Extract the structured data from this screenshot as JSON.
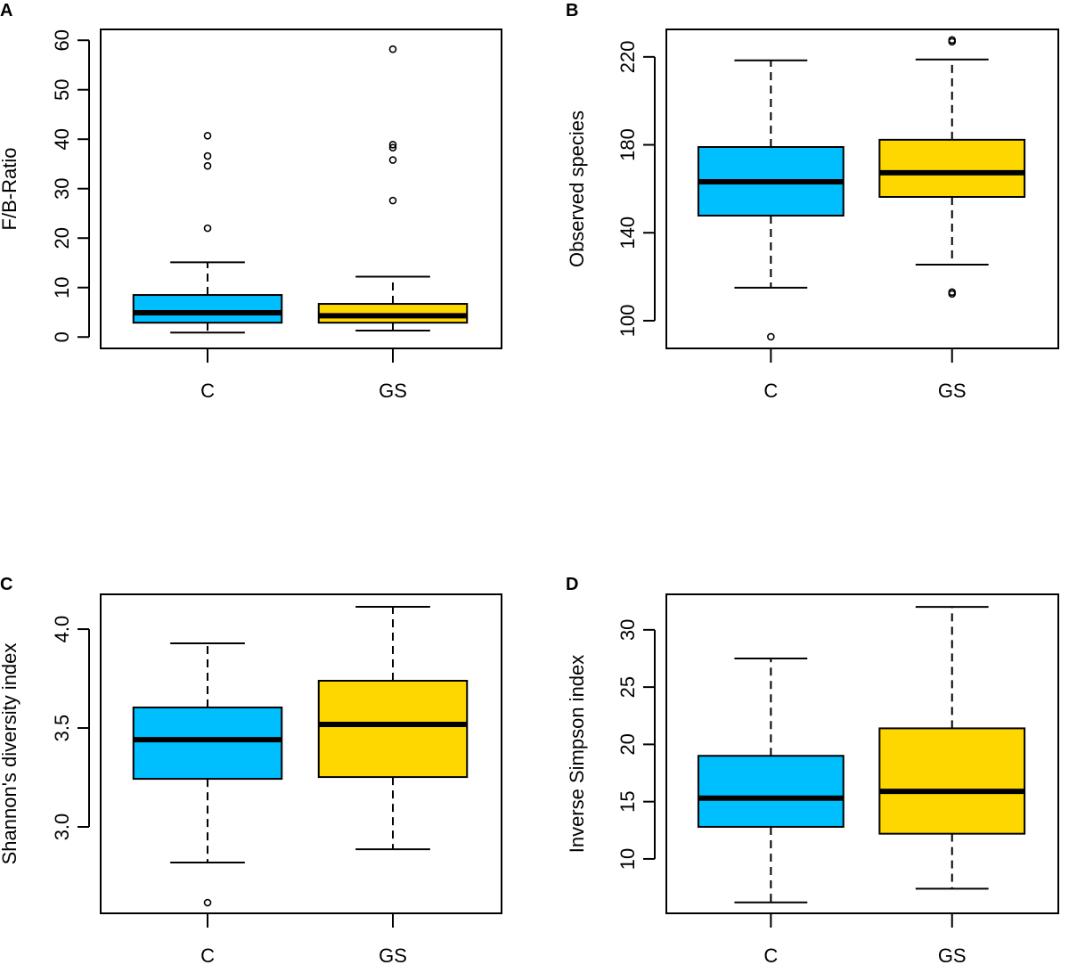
{
  "chart_data": [
    {
      "panel": "A",
      "type": "boxplot",
      "xlabel": "",
      "ylabel": "F/B-Ratio",
      "categories": [
        "C",
        "GS"
      ],
      "colors": [
        "#00BFFF",
        "#FFD700"
      ],
      "ylim": [
        -2.3,
        62.2
      ],
      "yticks": [
        0,
        10,
        20,
        30,
        40,
        50,
        60
      ],
      "grid": false,
      "boxes": [
        {
          "min": 0.9,
          "q1": 2.9,
          "median": 4.9,
          "q3": 8.5,
          "max": 15.1,
          "outliers": [
            22.0,
            34.6,
            36.6,
            40.7
          ]
        },
        {
          "min": 1.3,
          "q1": 2.9,
          "median": 4.3,
          "q3": 6.7,
          "max": 12.2,
          "outliers": [
            27.6,
            35.8,
            38.3,
            38.9,
            58.2
          ]
        }
      ]
    },
    {
      "panel": "B",
      "type": "boxplot",
      "xlabel": "",
      "ylabel": "Observed species",
      "categories": [
        "C",
        "GS"
      ],
      "colors": [
        "#00BFFF",
        "#FFD700"
      ],
      "ylim": [
        87.4,
        232.5
      ],
      "yticks": [
        100,
        140,
        180,
        220
      ],
      "grid": false,
      "boxes": [
        {
          "min": 115,
          "q1": 147.8,
          "median": 163.2,
          "q3": 179,
          "max": 218.4,
          "outliers": [
            92.7
          ]
        },
        {
          "min": 125.5,
          "q1": 156.3,
          "median": 167.3,
          "q3": 182.3,
          "max": 218.8,
          "outliers": [
            112.2,
            113,
            226.9,
            227.7
          ]
        }
      ]
    },
    {
      "panel": "C",
      "type": "boxplot",
      "xlabel": "",
      "ylabel": "Shannon's diversity index",
      "categories": [
        "C",
        "GS"
      ],
      "colors": [
        "#00BFFF",
        "#FFD700"
      ],
      "ylim": [
        2.563,
        4.176
      ],
      "yticks": [
        "3.0",
        "3.5",
        "4.0"
      ],
      "grid": false,
      "boxes": [
        {
          "min": 2.82,
          "q1": 3.243,
          "median": 3.441,
          "q3": 3.604,
          "max": 3.928,
          "outliers": [
            2.617
          ]
        },
        {
          "min": 2.887,
          "q1": 3.252,
          "median": 3.518,
          "q3": 3.739,
          "max": 4.113,
          "outliers": []
        }
      ]
    },
    {
      "panel": "D",
      "type": "boxplot",
      "xlabel": "",
      "ylabel": "Inverse Simpson index",
      "categories": [
        "C",
        "GS"
      ],
      "colors": [
        "#00BFFF",
        "#FFD700"
      ],
      "ylim": [
        5.25,
        33.1
      ],
      "yticks": [
        10,
        15,
        20,
        25,
        30
      ],
      "grid": false,
      "boxes": [
        {
          "min": 6.2,
          "q1": 12.8,
          "median": 15.3,
          "q3": 19.0,
          "max": 27.5,
          "outliers": []
        },
        {
          "min": 7.4,
          "q1": 12.2,
          "median": 15.9,
          "q3": 21.4,
          "max": 32.0,
          "outliers": []
        }
      ]
    }
  ]
}
